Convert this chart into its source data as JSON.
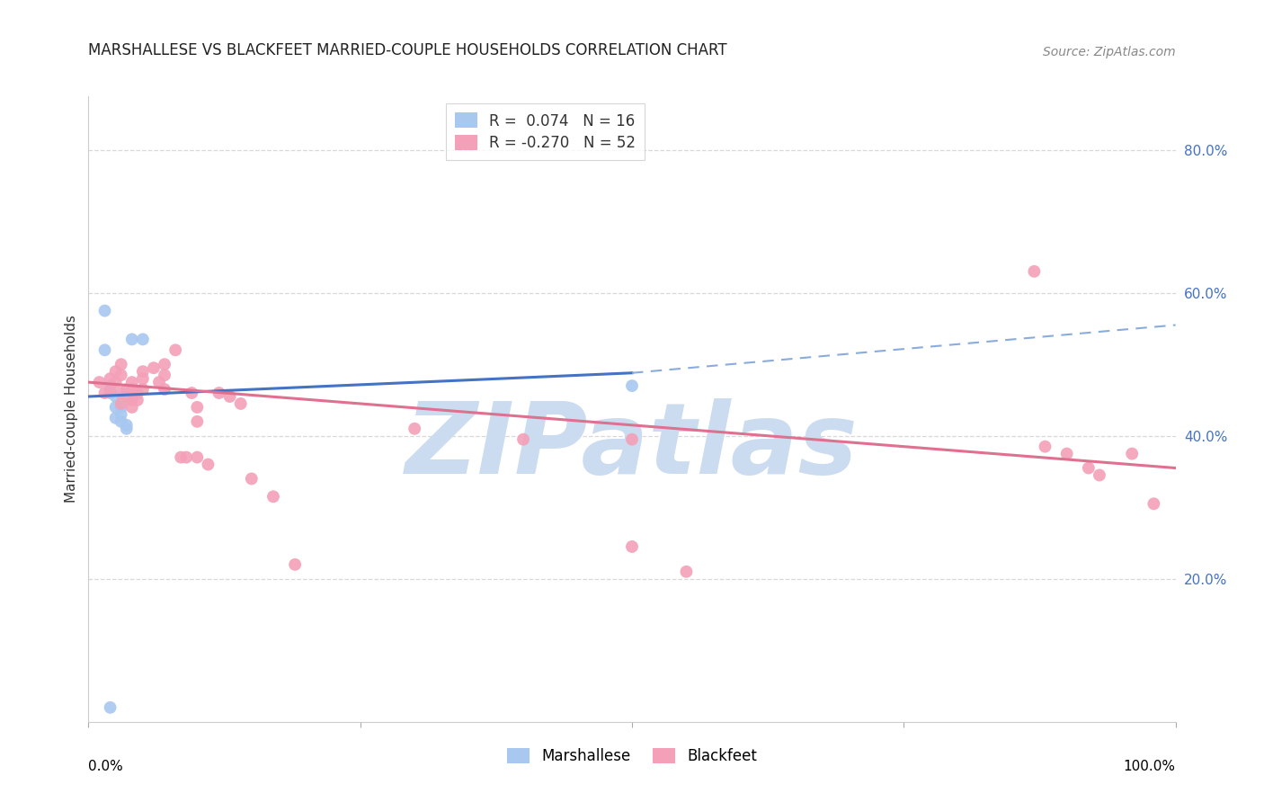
{
  "title": "MARSHALLESE VS BLACKFEET MARRIED-COUPLE HOUSEHOLDS CORRELATION CHART",
  "source": "Source: ZipAtlas.com",
  "ylabel": "Married-couple Households",
  "right_ytick_labels": [
    "20.0%",
    "40.0%",
    "60.0%",
    "80.0%"
  ],
  "right_ytick_values": [
    0.2,
    0.4,
    0.6,
    0.8
  ],
  "marshallese_color": "#a8c8f0",
  "blackfeet_color": "#f4a0b8",
  "trend_marshallese_solid_color": "#4472c4",
  "trend_marshallese_dashed_color": "#8aacdc",
  "trend_blackfeet_color": "#e07090",
  "background_color": "#ffffff",
  "watermark": "ZIPatlas",
  "watermark_color": "#ccdcf0",
  "grid_color": "#d8d8d8",
  "xlim": [
    0.0,
    1.0
  ],
  "ylim": [
    0.0,
    0.875
  ],
  "marshallese_x": [
    0.015,
    0.015,
    0.02,
    0.02,
    0.025,
    0.025,
    0.025,
    0.03,
    0.03,
    0.03,
    0.035,
    0.035,
    0.04,
    0.05,
    0.5,
    0.02
  ],
  "marshallese_y": [
    0.575,
    0.52,
    0.47,
    0.46,
    0.455,
    0.44,
    0.425,
    0.44,
    0.43,
    0.42,
    0.415,
    0.41,
    0.535,
    0.535,
    0.47,
    0.02
  ],
  "blackfeet_x": [
    0.01,
    0.015,
    0.02,
    0.02,
    0.025,
    0.025,
    0.03,
    0.03,
    0.03,
    0.03,
    0.035,
    0.035,
    0.04,
    0.04,
    0.04,
    0.04,
    0.045,
    0.045,
    0.05,
    0.05,
    0.05,
    0.06,
    0.065,
    0.07,
    0.07,
    0.07,
    0.08,
    0.085,
    0.09,
    0.095,
    0.1,
    0.1,
    0.1,
    0.11,
    0.12,
    0.13,
    0.14,
    0.15,
    0.17,
    0.19,
    0.3,
    0.4,
    0.5,
    0.5,
    0.55,
    0.87,
    0.88,
    0.9,
    0.92,
    0.93,
    0.96,
    0.98
  ],
  "blackfeet_y": [
    0.475,
    0.46,
    0.48,
    0.465,
    0.49,
    0.475,
    0.5,
    0.485,
    0.46,
    0.445,
    0.465,
    0.455,
    0.475,
    0.465,
    0.45,
    0.44,
    0.46,
    0.45,
    0.49,
    0.48,
    0.465,
    0.495,
    0.475,
    0.5,
    0.485,
    0.465,
    0.52,
    0.37,
    0.37,
    0.46,
    0.44,
    0.42,
    0.37,
    0.36,
    0.46,
    0.455,
    0.445,
    0.34,
    0.315,
    0.22,
    0.41,
    0.395,
    0.395,
    0.245,
    0.21,
    0.63,
    0.385,
    0.375,
    0.355,
    0.345,
    0.375,
    0.305
  ],
  "trend_marsh_x0": 0.0,
  "trend_marsh_y0": 0.455,
  "trend_marsh_x1": 0.5,
  "trend_marsh_y1": 0.488,
  "trend_marsh_dash_x0": 0.5,
  "trend_marsh_dash_y0": 0.488,
  "trend_marsh_dash_x1": 1.0,
  "trend_marsh_dash_y1": 0.555,
  "trend_black_x0": 0.0,
  "trend_black_y0": 0.475,
  "trend_black_x1": 1.0,
  "trend_black_y1": 0.355
}
